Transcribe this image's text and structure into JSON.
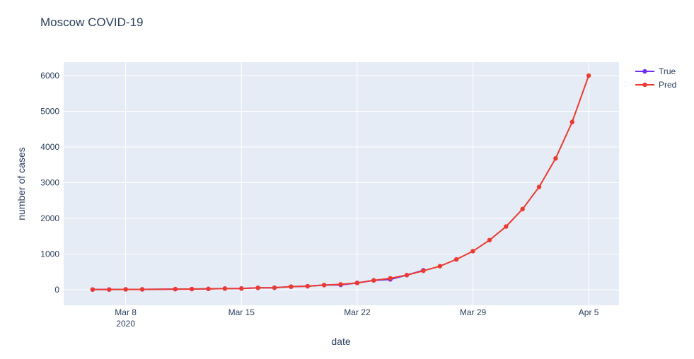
{
  "chart_data": {
    "type": "line",
    "title": "Moscow COVID-19",
    "xlabel": "date",
    "ylabel": "number of cases",
    "x": [
      "2020-03-06",
      "2020-03-07",
      "2020-03-08",
      "2020-03-09",
      "2020-03-11",
      "2020-03-12",
      "2020-03-13",
      "2020-03-14",
      "2020-03-15",
      "2020-03-16",
      "2020-03-17",
      "2020-03-18",
      "2020-03-19",
      "2020-03-20",
      "2020-03-21",
      "2020-03-22",
      "2020-03-23",
      "2020-03-24",
      "2020-03-25",
      "2020-03-26",
      "2020-03-27",
      "2020-03-28",
      "2020-03-29",
      "2020-03-30",
      "2020-03-31",
      "2020-04-01",
      "2020-04-02",
      "2020-04-03",
      "2020-04-04",
      "2020-04-05"
    ],
    "series": [
      {
        "name": "True",
        "color": "#6f2ff5",
        "values": [
          6,
          6,
          10,
          10,
          17,
          19,
          24,
          33,
          35,
          53,
          56,
          86,
          98,
          130,
          137,
          191,
          262,
          290,
          410,
          546,
          null,
          null,
          null,
          null,
          null,
          null,
          null,
          null,
          null,
          null
        ]
      },
      {
        "name": "Pred",
        "color": "#ec3a30",
        "values": [
          6,
          6,
          10,
          10,
          17,
          19,
          24,
          33,
          35,
          53,
          56,
          86,
          98,
          130,
          150,
          191,
          262,
          320,
          410,
          530,
          660,
          850,
          1080,
          1390,
          1770,
          2260,
          2880,
          3680,
          4700,
          6000
        ]
      }
    ],
    "xlim": [
      "2020-03-04T06:00",
      "2020-04-06T20:00"
    ],
    "xticks": [
      {
        "value": "2020-03-08",
        "label": "Mar 8\n2020"
      },
      {
        "value": "2020-03-15",
        "label": "Mar 15"
      },
      {
        "value": "2020-03-22",
        "label": "Mar 22"
      },
      {
        "value": "2020-03-29",
        "label": "Mar 29"
      },
      {
        "value": "2020-04-05",
        "label": "Apr 5"
      }
    ],
    "ylim": [
      -436,
      6376
    ],
    "yticks": [
      0,
      1000,
      2000,
      3000,
      4000,
      5000,
      6000
    ],
    "grid": true,
    "legend": "top-right"
  }
}
